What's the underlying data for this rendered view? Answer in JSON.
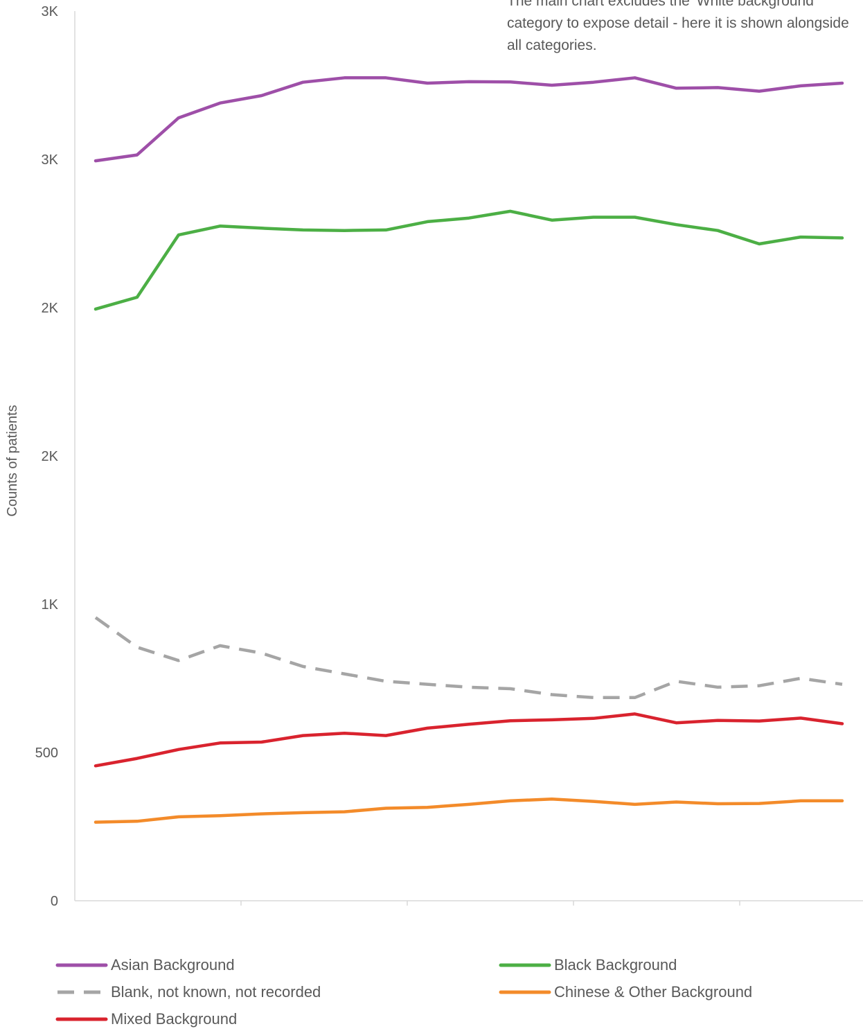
{
  "chart_data": {
    "type": "line",
    "title": "",
    "xlabel": "",
    "ylabel": "Counts of patients",
    "x": [
      1,
      2,
      3,
      4,
      5,
      6,
      7,
      8,
      9,
      10,
      11,
      12,
      13,
      14,
      15,
      16,
      17,
      18,
      19
    ],
    "ylim": [
      0,
      3000
    ],
    "y_ticks": [
      {
        "value": 0,
        "label": "0"
      },
      {
        "value": 500,
        "label": "500"
      },
      {
        "value": 1000,
        "label": "1K"
      },
      {
        "value": 1500,
        "label": "2K"
      },
      {
        "value": 2000,
        "label": "2K"
      },
      {
        "value": 2500,
        "label": "3K"
      },
      {
        "value": 3000,
        "label": "3K"
      }
    ],
    "x_tick_count": 4,
    "grid": false,
    "legend_position": "bottom",
    "annotation": "The main chart excludes the 'White background' category to expose detail - here it is shown alongside all categories.",
    "series": [
      {
        "name": "Asian Background",
        "color": "#9e4fa8",
        "dashed": false,
        "values": [
          2495,
          2515,
          2640,
          2690,
          2715,
          2760,
          2775,
          2775,
          2757,
          2762,
          2761,
          2750,
          2760,
          2775,
          2740,
          2742,
          2730,
          2748,
          2757
        ]
      },
      {
        "name": "Black Background",
        "color": "#4caf45",
        "dashed": false,
        "values": [
          1995,
          2035,
          2245,
          2275,
          2268,
          2262,
          2260,
          2262,
          2290,
          2302,
          2325,
          2295,
          2305,
          2305,
          2280,
          2260,
          2215,
          2238,
          2235
        ]
      },
      {
        "name": "Blank, not known, not recorded",
        "color": "#a5a5a5",
        "dashed": true,
        "values": [
          955,
          855,
          810,
          860,
          835,
          790,
          765,
          740,
          730,
          720,
          715,
          695,
          685,
          685,
          740,
          720,
          725,
          750,
          730
        ]
      },
      {
        "name": "Chinese & Other Background",
        "color": "#f38b2a",
        "dashed": false,
        "values": [
          265,
          268,
          283,
          287,
          293,
          297,
          300,
          312,
          315,
          325,
          337,
          343,
          335,
          325,
          333,
          327,
          328,
          337,
          337
        ]
      },
      {
        "name": "Mixed Background",
        "color": "#d9232e",
        "dashed": false,
        "values": [
          455,
          480,
          510,
          532,
          535,
          557,
          565,
          557,
          582,
          595,
          607,
          610,
          615,
          630,
          600,
          608,
          606,
          616,
          597
        ]
      }
    ]
  }
}
